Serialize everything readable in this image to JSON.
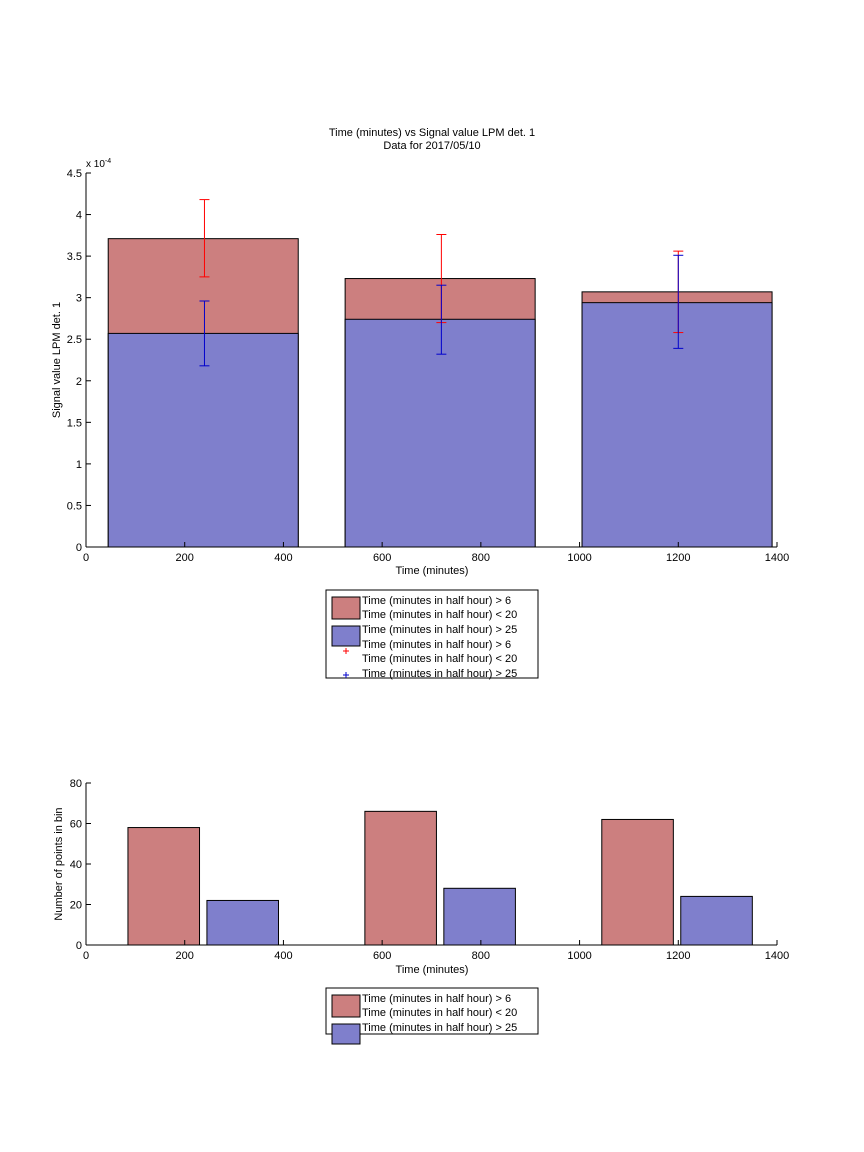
{
  "colors": {
    "red_fill": "#cc7f7f",
    "blue_fill": "#7f7fcc",
    "red_err": "#ff0000",
    "blue_err": "#0000cc",
    "axis": "#000000"
  },
  "chart_data": [
    {
      "type": "bar",
      "title": "Time (minutes) vs Signal value LPM det. 1",
      "subtitle": "Data for 2017/05/10",
      "xlabel": "Time (minutes)",
      "ylabel": "Signal value LPM det. 1",
      "y_exponent_label": "x 10",
      "y_exponent": "-4",
      "y_scale": 0.0001,
      "xlim": [
        0,
        1400
      ],
      "ylim": [
        0,
        4.5
      ],
      "xticks": [
        0,
        200,
        400,
        600,
        800,
        1000,
        1200,
        1400
      ],
      "xtick_labels": [
        "0",
        "200",
        "400",
        "600",
        "800",
        "1000",
        "1200",
        "1400"
      ],
      "yticks": [
        0,
        0.5,
        1,
        1.5,
        2,
        2.5,
        3,
        3.5,
        4,
        4.5
      ],
      "ytick_labels": [
        "0",
        "0.5",
        "1",
        "1.5",
        "2",
        "2.5",
        "3",
        "3.5",
        "4",
        "4.5"
      ],
      "grid": false,
      "bars": [
        {
          "x_start": 45,
          "x_end": 430,
          "value_red": 3.71,
          "value_blue": 2.57
        },
        {
          "x_start": 525,
          "x_end": 910,
          "value_red": 3.23,
          "value_blue": 2.74
        },
        {
          "x_start": 1005,
          "x_end": 1390,
          "value_red": 3.07,
          "value_blue": 2.94
        }
      ],
      "errorbars_red": [
        {
          "x": 240,
          "low": 3.25,
          "high": 4.18
        },
        {
          "x": 720,
          "low": 2.7,
          "high": 3.76
        },
        {
          "x": 1200,
          "low": 2.58,
          "high": 3.56
        }
      ],
      "errorbars_blue": [
        {
          "x": 240,
          "low": 2.18,
          "high": 2.96
        },
        {
          "x": 720,
          "low": 2.32,
          "high": 3.15
        },
        {
          "x": 1200,
          "low": 2.39,
          "high": 3.51
        }
      ],
      "legend": {
        "placement": "below",
        "entries": [
          {
            "kind": "red-patch",
            "line1": "Time (minutes in half hour) > 6",
            "line2": "Time (minutes in half hour) < 20"
          },
          {
            "kind": "blue-patch",
            "line1": "Time (minutes in half hour) > 25"
          },
          {
            "kind": "red-marker",
            "line1": "Time (minutes in half hour) > 6",
            "line2": "Time (minutes in half hour) < 20"
          },
          {
            "kind": "blue-marker",
            "line1": "Time (minutes in half hour) > 25"
          }
        ]
      }
    },
    {
      "type": "bar",
      "title": "",
      "xlabel": "Time (minutes)",
      "ylabel": "Number of points in bin",
      "xlim": [
        0,
        1400
      ],
      "ylim": [
        0,
        80
      ],
      "xticks": [
        0,
        200,
        400,
        600,
        800,
        1000,
        1200,
        1400
      ],
      "xtick_labels": [
        "0",
        "200",
        "400",
        "600",
        "800",
        "1000",
        "1200",
        "1400"
      ],
      "yticks": [
        0,
        20,
        40,
        60,
        80
      ],
      "ytick_labels": [
        "0",
        "20",
        "40",
        "60",
        "80"
      ],
      "grid": false,
      "series": [
        {
          "color_key": "red_fill",
          "bars": [
            {
              "x_start": 85,
              "x_end": 230,
              "value": 58
            },
            {
              "x_start": 565,
              "x_end": 710,
              "value": 66
            },
            {
              "x_start": 1045,
              "x_end": 1190,
              "value": 62
            }
          ]
        },
        {
          "color_key": "blue_fill",
          "bars": [
            {
              "x_start": 245,
              "x_end": 390,
              "value": 22
            },
            {
              "x_start": 725,
              "x_end": 870,
              "value": 28
            },
            {
              "x_start": 1205,
              "x_end": 1350,
              "value": 24
            }
          ]
        }
      ],
      "legend": {
        "placement": "below",
        "entries": [
          {
            "kind": "red-patch",
            "line1": "Time (minutes in half hour) > 6",
            "line2": "Time (minutes in half hour) < 20"
          },
          {
            "kind": "blue-patch",
            "line1": "Time (minutes in half hour) > 25"
          }
        ]
      }
    }
  ]
}
